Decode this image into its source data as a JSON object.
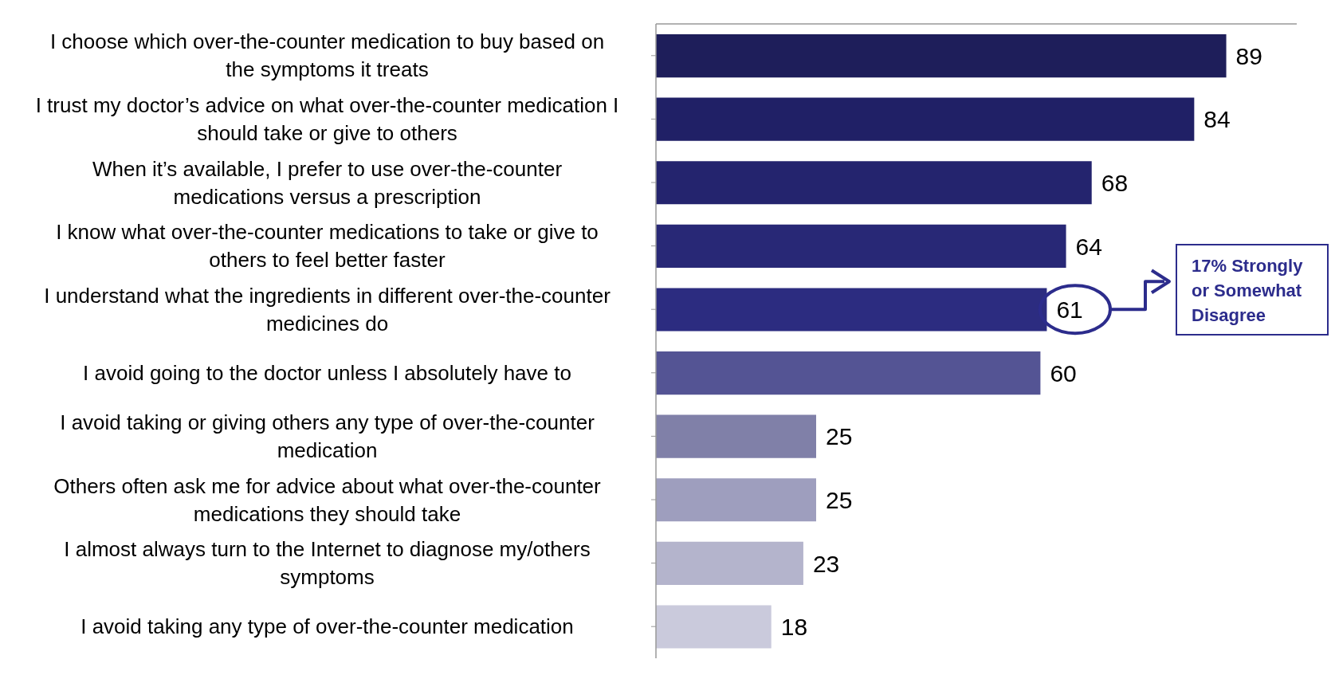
{
  "chart_data": {
    "type": "bar",
    "orientation": "horizontal",
    "categories": [
      "I choose which over-the-counter medication to buy based on the symptoms it treats",
      "I trust my doctor’s advice on what over-the-counter medication I should take or give to others",
      "When it’s available, I prefer to use over-the-counter medications versus a prescription",
      "I know what over-the-counter medications to take or give to others to feel better faster",
      "I understand what the ingredients in different over-the-counter medicines do",
      "I avoid going to the doctor unless I absolutely have to",
      "I avoid taking or giving others any type of over-the-counter medication",
      "Others often ask me for advice about what over-the-counter medications they should take",
      "I almost always turn to the Internet to diagnose my/others symptoms",
      "I avoid taking any type of over-the-counter medication"
    ],
    "values": [
      89,
      84,
      68,
      64,
      61,
      60,
      25,
      25,
      23,
      18
    ],
    "colors": [
      "#1e1e5a",
      "#202066",
      "#24246e",
      "#282876",
      "#2c2c80",
      "#545494",
      "#8080a8",
      "#9e9ebe",
      "#b4b4cc",
      "#cacadc"
    ],
    "xlim": [
      0,
      100
    ],
    "tick_labels": "y",
    "data_labels": true,
    "annotations": [
      "17% Strongly or Somewhat Disagree"
    ]
  }
}
